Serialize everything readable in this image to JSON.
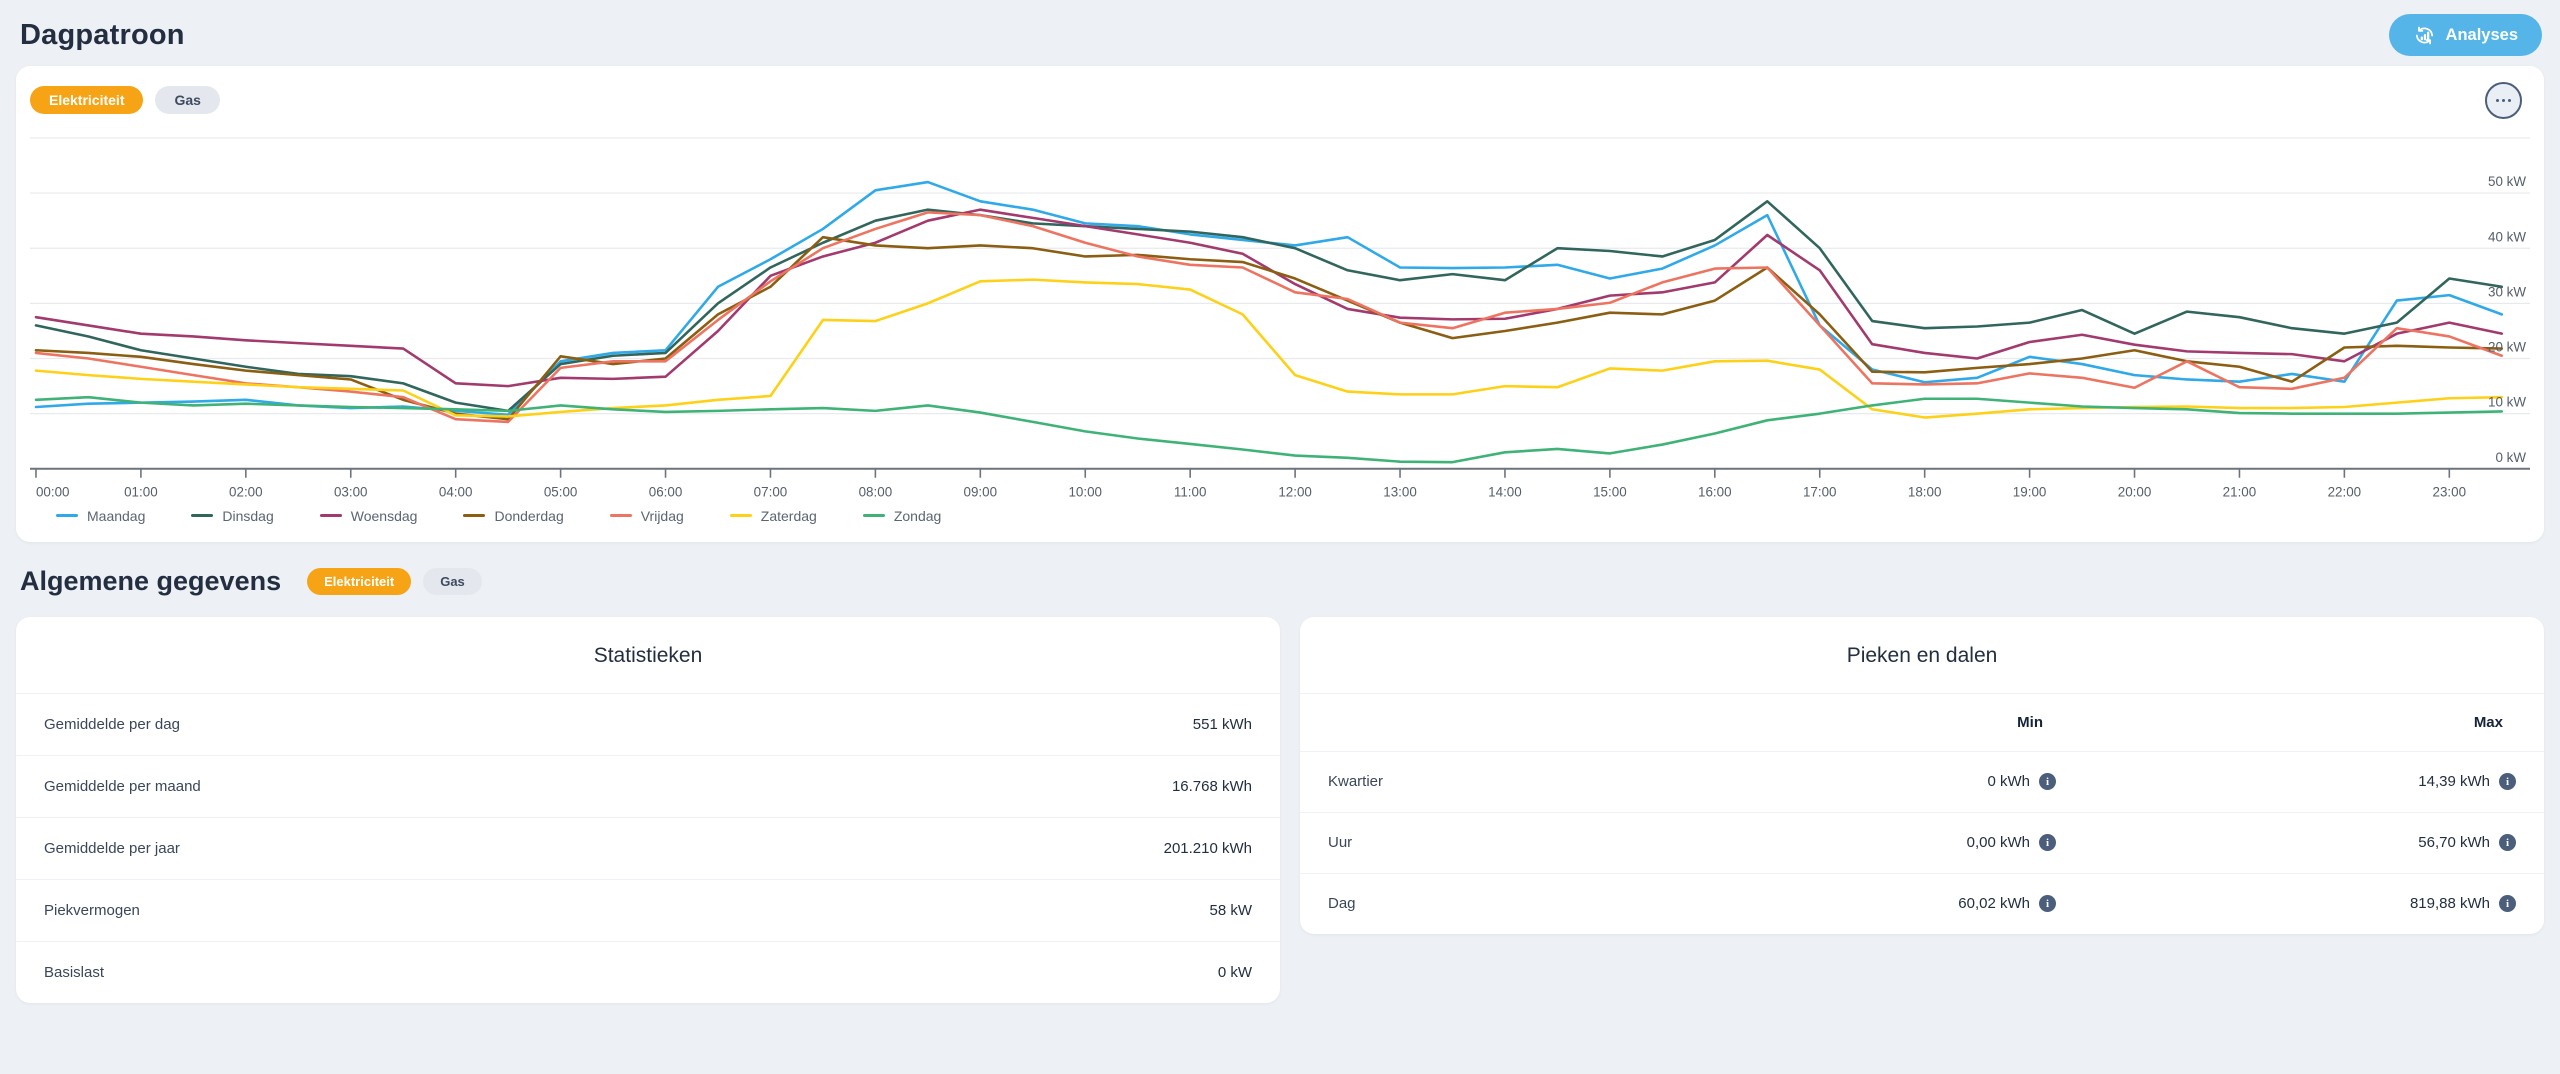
{
  "page": {
    "title": "Dagpatroon"
  },
  "header": {
    "analyses_button": "Analyses",
    "analyses_icon": "analytics-refresh-icon",
    "accent_blue": "#55b5e9"
  },
  "chart_card": {
    "toggles": [
      {
        "label": "Elektriciteit",
        "active": true
      },
      {
        "label": "Gas",
        "active": false
      }
    ],
    "menu_icon": "ellipsis-icon",
    "active_pill_color": "#f6a416"
  },
  "chart_data": {
    "type": "line",
    "x_start_hour": 0,
    "x_step_hours": 0.5,
    "x_tick_labels": [
      "00:00",
      "01:00",
      "02:00",
      "03:00",
      "04:00",
      "05:00",
      "06:00",
      "07:00",
      "08:00",
      "09:00",
      "10:00",
      "11:00",
      "12:00",
      "13:00",
      "14:00",
      "15:00",
      "16:00",
      "17:00",
      "18:00",
      "19:00",
      "20:00",
      "21:00",
      "22:00",
      "23:00"
    ],
    "y_unit": "kW",
    "y_ticks": [
      0,
      10,
      20,
      30,
      40,
      50
    ],
    "y_tick_labels": [
      "0 kW",
      "10 kW",
      "20 kW",
      "30 kW",
      "40 kW",
      "50 kW"
    ],
    "ylim": [
      0,
      60
    ],
    "grid": true,
    "legend_position": "bottom-left",
    "series": [
      {
        "name": "Maandag",
        "color": "#2fa9e8",
        "values": [
          11.2,
          11.8,
          12.0,
          12.2,
          12.5,
          11.5,
          11.0,
          11.3,
          10.5,
          9.8,
          19.5,
          21.0,
          21.5,
          33.0,
          38.0,
          43.5,
          50.5,
          52.0,
          48.5,
          47.0,
          44.5,
          44.0,
          42.5,
          41.5,
          40.5,
          42.0,
          36.5,
          36.4,
          36.5,
          37.0,
          34.5,
          36.3,
          40.5,
          46.0,
          26.0,
          18.0,
          15.7,
          16.5,
          20.3,
          19.0,
          17.0,
          16.2,
          15.8,
          17.2,
          15.8,
          30.5,
          31.5,
          28.0
        ]
      },
      {
        "name": "Dinsdag",
        "color": "#31665c",
        "values": [
          26.0,
          24.0,
          21.5,
          20.0,
          18.5,
          17.2,
          16.8,
          15.5,
          12.0,
          10.5,
          19.0,
          20.5,
          21.0,
          30.0,
          36.5,
          41.0,
          45.0,
          47.0,
          46.0,
          44.5,
          44.0,
          43.5,
          43.0,
          42.0,
          40.0,
          36.0,
          34.2,
          35.3,
          34.2,
          40.0,
          39.5,
          38.5,
          41.5,
          48.5,
          40.0,
          26.8,
          25.5,
          25.8,
          26.5,
          28.8,
          24.5,
          28.5,
          27.5,
          25.5,
          24.5,
          26.5,
          34.5,
          33.0
        ]
      },
      {
        "name": "Woensdag",
        "color": "#a23a6e",
        "values": [
          27.5,
          26.0,
          24.5,
          24.0,
          23.3,
          22.8,
          22.3,
          21.8,
          15.5,
          15.0,
          16.5,
          16.3,
          16.7,
          25.0,
          35.0,
          38.5,
          41.0,
          45.0,
          47.0,
          45.5,
          44.0,
          42.5,
          41.0,
          39.0,
          33.5,
          29.0,
          27.4,
          27.1,
          27.2,
          29.0,
          31.4,
          32.0,
          33.8,
          42.4,
          36.0,
          22.6,
          21.0,
          20.0,
          23.0,
          24.3,
          22.5,
          21.3,
          21.0,
          20.8,
          19.5,
          24.5,
          26.5,
          24.5
        ]
      },
      {
        "name": "Donderdag",
        "color": "#8b5e12",
        "values": [
          21.5,
          21.0,
          20.3,
          19.0,
          17.8,
          17.0,
          16.2,
          12.5,
          10.0,
          9.0,
          20.4,
          19.0,
          20.0,
          28.0,
          33.0,
          42.0,
          40.5,
          40.0,
          40.5,
          40.0,
          38.5,
          38.8,
          38.0,
          37.5,
          34.5,
          30.5,
          26.5,
          23.7,
          25.0,
          26.5,
          28.3,
          28.0,
          30.5,
          36.5,
          28.0,
          17.6,
          17.5,
          18.3,
          19.0,
          20.0,
          21.5,
          19.5,
          18.5,
          15.8,
          22.0,
          22.3,
          22.0,
          21.8
        ]
      },
      {
        "name": "Vrijdag",
        "color": "#ed7460",
        "values": [
          21.0,
          20.0,
          18.5,
          17.0,
          15.5,
          14.8,
          14.0,
          13.0,
          9.0,
          8.5,
          18.3,
          19.5,
          19.5,
          27.0,
          34.0,
          40.0,
          43.5,
          46.5,
          46.0,
          44.0,
          41.0,
          38.5,
          37.0,
          36.5,
          32.0,
          30.8,
          26.5,
          25.5,
          28.3,
          29.0,
          30.1,
          33.8,
          36.3,
          36.5,
          26.0,
          15.5,
          15.3,
          15.5,
          17.3,
          16.5,
          14.7,
          19.5,
          14.8,
          14.5,
          16.5,
          25.5,
          24.0,
          20.5
        ]
      },
      {
        "name": "Zaterdag",
        "color": "#fdd118",
        "values": [
          17.8,
          17.0,
          16.3,
          15.8,
          15.3,
          14.8,
          14.5,
          14.2,
          9.7,
          9.5,
          10.3,
          11.0,
          11.5,
          12.5,
          13.2,
          27.0,
          26.8,
          30.0,
          34.0,
          34.3,
          33.8,
          33.5,
          32.5,
          28.0,
          17.0,
          14.0,
          13.5,
          13.5,
          15.0,
          14.8,
          18.2,
          17.8,
          19.5,
          19.6,
          18.0,
          10.8,
          9.3,
          10.0,
          10.8,
          11.0,
          11.2,
          11.3,
          11.0,
          11.0,
          11.2,
          12.0,
          12.8,
          13.0
        ]
      },
      {
        "name": "Zondag",
        "color": "#3fb377",
        "values": [
          12.5,
          13.0,
          12.0,
          11.5,
          11.8,
          11.5,
          11.2,
          11.0,
          10.8,
          10.5,
          11.5,
          10.8,
          10.3,
          10.5,
          10.8,
          11.0,
          10.5,
          11.5,
          10.2,
          8.5,
          6.8,
          5.5,
          4.5,
          3.5,
          2.4,
          2.0,
          1.3,
          1.2,
          3.0,
          3.6,
          2.8,
          4.4,
          6.4,
          8.8,
          10.0,
          11.5,
          12.7,
          12.7,
          12.0,
          11.3,
          11.0,
          10.8,
          10.1,
          10.0,
          10.0,
          10.0,
          10.2,
          10.4
        ]
      }
    ]
  },
  "general_section": {
    "title": "Algemene gegevens",
    "toggles": [
      {
        "label": "Elektriciteit",
        "active": true
      },
      {
        "label": "Gas",
        "active": false
      }
    ],
    "statistics_card": {
      "title": "Statistieken",
      "rows": [
        {
          "label": "Gemiddelde per dag",
          "value": "551 kWh"
        },
        {
          "label": "Gemiddelde per maand",
          "value": "16.768 kWh"
        },
        {
          "label": "Gemiddelde per jaar",
          "value": "201.210 kWh"
        },
        {
          "label": "Piekvermogen",
          "value": "58 kW"
        },
        {
          "label": "Basislast",
          "value": "0 kW"
        }
      ]
    },
    "peaks_card": {
      "title": "Pieken en dalen",
      "col_min": "Min",
      "col_max": "Max",
      "info_icon_glyph": "i",
      "rows": [
        {
          "label": "Kwartier",
          "min": "0 kWh",
          "max": "14,39 kWh"
        },
        {
          "label": "Uur",
          "min": "0,00 kWh",
          "max": "56,70 kWh"
        },
        {
          "label": "Dag",
          "min": "60,02 kWh",
          "max": "819,88 kWh"
        }
      ]
    }
  }
}
